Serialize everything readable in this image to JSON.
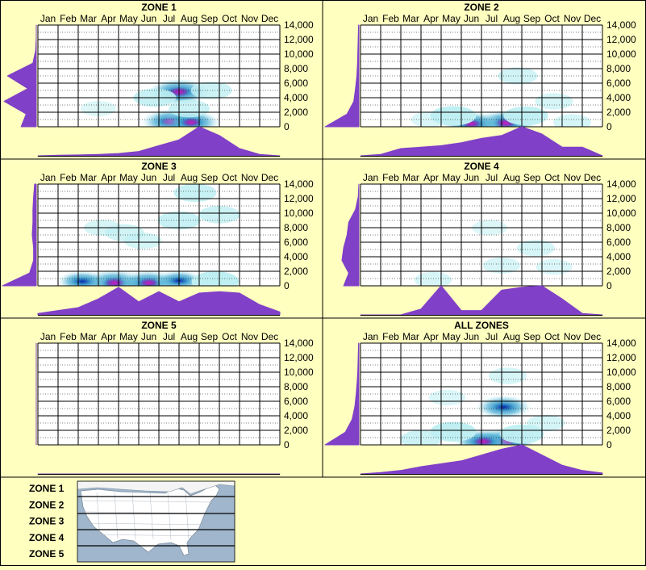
{
  "colors": {
    "background": "#ffffc0",
    "profile": "#8040c8",
    "grid": "#000000",
    "low": "#bfeff2",
    "mid": "#40a8d0",
    "high": "#0828a8",
    "peak": "#d020c0",
    "map_water": "#9fb6cc",
    "map_land": "#ffffff"
  },
  "months": [
    "Jan",
    "Feb",
    "Mar",
    "Apr",
    "May",
    "Jun",
    "Jul",
    "Aug",
    "Sep",
    "Oct",
    "Nov",
    "Dec"
  ],
  "y_ticks": [
    "14,000",
    "12,000",
    "10,000",
    "8,000",
    "6,000",
    "4,000",
    "2,000",
    "0"
  ],
  "chart_data": [
    {
      "type": "heatmap",
      "title": "ZONE 1",
      "y_range": [
        0,
        14000
      ],
      "hotspots": [
        {
          "month": 7.0,
          "elevation": 4800,
          "intensity": 1.0
        },
        {
          "month": 6.6,
          "elevation": 700,
          "intensity": 0.9
        },
        {
          "month": 7.6,
          "elevation": 600,
          "intensity": 0.85
        },
        {
          "month": 5.8,
          "elevation": 4000,
          "intensity": 0.35
        },
        {
          "month": 8.6,
          "elevation": 5000,
          "intensity": 0.3
        },
        {
          "month": 7.5,
          "elevation": 2500,
          "intensity": 0.3
        },
        {
          "month": 3.0,
          "elevation": 2500,
          "intensity": 0.12
        }
      ],
      "month_profile": [
        0,
        0.02,
        0.03,
        0.05,
        0.08,
        0.15,
        0.35,
        0.55,
        1.0,
        0.7,
        0.25,
        0.05,
        0
      ],
      "elevation_profile": [
        0.45,
        0.3,
        0.95,
        0.25,
        0.85,
        0.1,
        0.02,
        0,
        0
      ]
    },
    {
      "type": "heatmap",
      "title": "ZONE 2",
      "y_range": [
        0,
        14000
      ],
      "hotspots": [
        {
          "month": 7.2,
          "elevation": 500,
          "intensity": 1.0
        },
        {
          "month": 5.5,
          "elevation": 400,
          "intensity": 0.85
        },
        {
          "month": 4.6,
          "elevation": 1500,
          "intensity": 0.45
        },
        {
          "month": 8.2,
          "elevation": 1500,
          "intensity": 0.4
        },
        {
          "month": 7.8,
          "elevation": 7000,
          "intensity": 0.25
        },
        {
          "month": 9.6,
          "elevation": 3500,
          "intensity": 0.2
        },
        {
          "month": 3.4,
          "elevation": 1000,
          "intensity": 0.15
        },
        {
          "month": 10.5,
          "elevation": 600,
          "intensity": 0.2
        }
      ],
      "month_profile": [
        0,
        0.05,
        0.25,
        0.3,
        0.35,
        0.45,
        0.6,
        0.7,
        1.0,
        0.75,
        0.3,
        0.3,
        0
      ],
      "elevation_profile": [
        1.0,
        0.35,
        0.15,
        0.1,
        0.06,
        0.04,
        0.03,
        0.02,
        0.01
      ]
    },
    {
      "type": "heatmap",
      "title": "ZONE 3",
      "y_range": [
        0,
        14000
      ],
      "hotspots": [
        {
          "month": 3.8,
          "elevation": 400,
          "intensity": 1.0
        },
        {
          "month": 5.5,
          "elevation": 400,
          "intensity": 0.9
        },
        {
          "month": 2.2,
          "elevation": 600,
          "intensity": 0.6
        },
        {
          "month": 7.0,
          "elevation": 700,
          "intensity": 0.55
        },
        {
          "month": 8.8,
          "elevation": 600,
          "intensity": 0.5
        },
        {
          "month": 7.8,
          "elevation": 12800,
          "intensity": 0.35
        },
        {
          "month": 7.0,
          "elevation": 9000,
          "intensity": 0.35
        },
        {
          "month": 9.0,
          "elevation": 9800,
          "intensity": 0.3
        },
        {
          "month": 4.3,
          "elevation": 7300,
          "intensity": 0.25
        },
        {
          "month": 5.2,
          "elevation": 6200,
          "intensity": 0.2
        },
        {
          "month": 3.2,
          "elevation": 8000,
          "intensity": 0.18
        }
      ],
      "month_profile": [
        0.05,
        0.15,
        0.25,
        0.55,
        0.95,
        0.45,
        0.8,
        0.45,
        0.75,
        0.8,
        0.75,
        0.35,
        0.1
      ],
      "elevation_profile": [
        1.0,
        0.2,
        0.08,
        0.08,
        0.12,
        0.1,
        0.1,
        0.08,
        0.05
      ]
    },
    {
      "type": "heatmap",
      "title": "ZONE 4",
      "y_range": [
        0,
        14000
      ],
      "hotspots": [
        {
          "month": 3.6,
          "elevation": 800,
          "intensity": 0.18
        },
        {
          "month": 7.0,
          "elevation": 2800,
          "intensity": 0.18
        },
        {
          "month": 8.7,
          "elevation": 5200,
          "intensity": 0.2
        },
        {
          "month": 9.6,
          "elevation": 2600,
          "intensity": 0.15
        },
        {
          "month": 6.4,
          "elevation": 8000,
          "intensity": 0.12
        }
      ],
      "month_profile": [
        0,
        0,
        0,
        0.2,
        1.0,
        0.15,
        0.15,
        0.85,
        0.95,
        1.0,
        0.55,
        0.05,
        0
      ],
      "elevation_profile": [
        0.45,
        0.3,
        0.5,
        0.45,
        0.35,
        0.3,
        0.1,
        0.02,
        0
      ]
    },
    {
      "type": "heatmap",
      "title": "ZONE 5",
      "y_range": [
        0,
        14000
      ],
      "hotspots": [],
      "month_profile": [
        0,
        0,
        0,
        0,
        0,
        0,
        0,
        0,
        0,
        0,
        0,
        0,
        0
      ],
      "elevation_profile": [
        0,
        0,
        0,
        0,
        0,
        0,
        0,
        0,
        0
      ]
    },
    {
      "type": "heatmap",
      "title": "ALL ZONES",
      "y_range": [
        0,
        14000
      ],
      "hotspots": [
        {
          "month": 7.2,
          "elevation": 500,
          "intensity": 1.0
        },
        {
          "month": 6.1,
          "elevation": 450,
          "intensity": 0.9
        },
        {
          "month": 7.1,
          "elevation": 5200,
          "intensity": 0.75
        },
        {
          "month": 4.6,
          "elevation": 1800,
          "intensity": 0.45
        },
        {
          "month": 8.0,
          "elevation": 1500,
          "intensity": 0.4
        },
        {
          "month": 3.0,
          "elevation": 800,
          "intensity": 0.3
        },
        {
          "month": 7.3,
          "elevation": 9500,
          "intensity": 0.2
        },
        {
          "month": 9.2,
          "elevation": 3000,
          "intensity": 0.2
        },
        {
          "month": 4.3,
          "elevation": 6500,
          "intensity": 0.15
        }
      ],
      "month_profile": [
        0,
        0.05,
        0.12,
        0.25,
        0.35,
        0.45,
        0.65,
        0.85,
        1.0,
        0.65,
        0.3,
        0.12,
        0.03
      ],
      "elevation_profile": [
        1.0,
        0.4,
        0.2,
        0.12,
        0.08,
        0.05,
        0.03,
        0.02,
        0.01
      ]
    }
  ],
  "legend": {
    "zones": [
      "ZONE 1",
      "ZONE 2",
      "ZONE 3",
      "ZONE 4",
      "ZONE 5"
    ]
  }
}
